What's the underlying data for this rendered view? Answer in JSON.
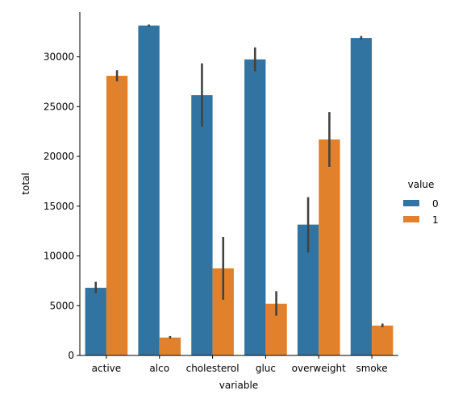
{
  "chart_data": {
    "type": "bar",
    "categories": [
      "active",
      "alco",
      "cholesterol",
      "gluc",
      "overweight",
      "smoke"
    ],
    "xlabel": "variable",
    "ylabel": "total",
    "ylim": [
      0,
      34500
    ],
    "yticks": [
      0,
      5000,
      10000,
      15000,
      20000,
      25000,
      30000
    ],
    "legend": {
      "title": "value",
      "placement": "right"
    },
    "series": [
      {
        "name": "0",
        "color": "#3274a1",
        "values": [
          6800,
          33150,
          26150,
          29750,
          13150,
          31900
        ],
        "ci_low": [
          6250,
          33050,
          23000,
          28550,
          10350,
          31750
        ],
        "ci_high": [
          7400,
          33250,
          29350,
          30950,
          15900,
          32100
        ]
      },
      {
        "name": "1",
        "color": "#e1812c",
        "values": [
          28100,
          1800,
          8750,
          5200,
          21700,
          3000
        ],
        "ci_low": [
          27550,
          1700,
          5600,
          4000,
          18950,
          2850
        ],
        "ci_high": [
          28650,
          1950,
          11900,
          6450,
          24450,
          3200
        ]
      }
    ]
  }
}
